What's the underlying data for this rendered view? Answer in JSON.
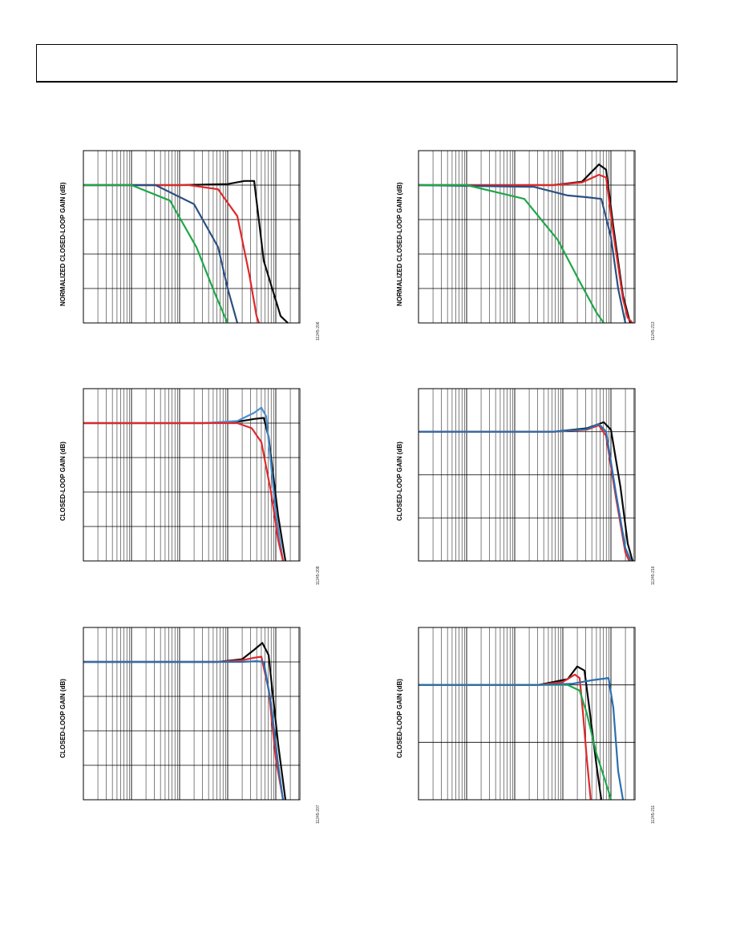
{
  "page": {
    "header": ""
  },
  "chart_data": [
    {
      "id": "c1",
      "type": "line",
      "figure_id": "11245-206",
      "ylabel": "NORMALIZED CLOSED-LOOP GAIN (dB)",
      "xscale": "log",
      "xdecades": 4.5,
      "ylim": [
        -4,
        1
      ],
      "grid": true,
      "series": [
        {
          "color": "#0a0a0a",
          "points": [
            [
              0,
              0
            ],
            [
              2.0,
              0
            ],
            [
              3.0,
              0.03
            ],
            [
              3.35,
              0.12
            ],
            [
              3.55,
              0.12
            ],
            [
              3.75,
              -2.2
            ],
            [
              4.1,
              -3.8
            ],
            [
              4.25,
              -4
            ]
          ]
        },
        {
          "color": "#e0282a",
          "points": [
            [
              0,
              0
            ],
            [
              2.2,
              0
            ],
            [
              2.8,
              -0.12
            ],
            [
              3.2,
              -0.9
            ],
            [
              3.45,
              -2.6
            ],
            [
              3.6,
              -3.8
            ],
            [
              3.65,
              -4
            ]
          ]
        },
        {
          "color": "#2b4f82",
          "points": [
            [
              0,
              0
            ],
            [
              1.5,
              0
            ],
            [
              2.3,
              -0.55
            ],
            [
              2.8,
              -1.8
            ],
            [
              3.0,
              -3.0
            ],
            [
              3.15,
              -3.75
            ],
            [
              3.2,
              -4
            ]
          ]
        },
        {
          "color": "#1fa64a",
          "points": [
            [
              0,
              0
            ],
            [
              1.0,
              0
            ],
            [
              1.8,
              -0.45
            ],
            [
              2.35,
              -1.8
            ],
            [
              2.75,
              -3.2
            ],
            [
              2.95,
              -3.85
            ],
            [
              3.0,
              -4
            ]
          ]
        }
      ]
    },
    {
      "id": "c2",
      "type": "line",
      "figure_id": "11245-213",
      "ylabel": "NORMALIZED CLOSED-LOOP GAIN (dB)",
      "xscale": "log",
      "xdecades": 4.5,
      "ylim": [
        -4,
        1
      ],
      "grid": true,
      "series": [
        {
          "color": "#0a0a0a",
          "points": [
            [
              0,
              0
            ],
            [
              2.8,
              0
            ],
            [
              3.4,
              0.1
            ],
            [
              3.75,
              0.6
            ],
            [
              3.9,
              0.45
            ],
            [
              4.05,
              -1.2
            ],
            [
              4.25,
              -3.2
            ],
            [
              4.4,
              -4
            ]
          ]
        },
        {
          "color": "#e0282a",
          "points": [
            [
              0,
              0
            ],
            [
              2.8,
              0
            ],
            [
              3.4,
              0.08
            ],
            [
              3.75,
              0.3
            ],
            [
              3.9,
              0.22
            ],
            [
              4.05,
              -1.4
            ],
            [
              4.25,
              -3.3
            ],
            [
              4.35,
              -3.85
            ],
            [
              4.45,
              -4
            ]
          ]
        },
        {
          "color": "#2b4f82",
          "points": [
            [
              0,
              0
            ],
            [
              2.4,
              -0.05
            ],
            [
              3.1,
              -0.3
            ],
            [
              3.5,
              -0.35
            ],
            [
              3.8,
              -0.4
            ],
            [
              4.0,
              -1.5
            ],
            [
              4.15,
              -3.0
            ],
            [
              4.3,
              -4
            ]
          ]
        },
        {
          "color": "#1fa64a",
          "points": [
            [
              0,
              0
            ],
            [
              1.0,
              0
            ],
            [
              2.2,
              -0.4
            ],
            [
              2.9,
              -1.6
            ],
            [
              3.35,
              -2.8
            ],
            [
              3.7,
              -3.7
            ],
            [
              3.85,
              -4
            ]
          ]
        }
      ]
    },
    {
      "id": "c3",
      "type": "line",
      "figure_id": "11245-208",
      "ylabel": "CLOSED-LOOP GAIN (dB)",
      "xscale": "log",
      "xdecades": 4.5,
      "ylim": [
        -4,
        1
      ],
      "grid": true,
      "series": [
        {
          "color": "#0a0a0a",
          "points": [
            [
              0,
              0
            ],
            [
              2.5,
              0
            ],
            [
              3.2,
              0.04
            ],
            [
              3.55,
              0.12
            ],
            [
              3.75,
              0.15
            ],
            [
              3.85,
              -0.4
            ],
            [
              4.05,
              -2.7
            ],
            [
              4.2,
              -4
            ]
          ]
        },
        {
          "color": "#4a8fcf",
          "points": [
            [
              0,
              0
            ],
            [
              2.5,
              0
            ],
            [
              3.2,
              0.06
            ],
            [
              3.55,
              0.3
            ],
            [
              3.7,
              0.45
            ],
            [
              3.8,
              0.2
            ],
            [
              4.0,
              -2.6
            ],
            [
              4.15,
              -4
            ]
          ]
        },
        {
          "color": "#e0282a",
          "points": [
            [
              0,
              0
            ],
            [
              2.5,
              0
            ],
            [
              3.2,
              0
            ],
            [
              3.5,
              -0.15
            ],
            [
              3.7,
              -0.55
            ],
            [
              3.9,
              -2.0
            ],
            [
              4.05,
              -3.4
            ],
            [
              4.15,
              -4
            ]
          ]
        }
      ]
    },
    {
      "id": "c4",
      "type": "line",
      "figure_id": "11245-216",
      "ylabel": "CLOSED-LOOP GAIN (dB)",
      "xscale": "log",
      "xdecades": 4.5,
      "ylim": [
        -3,
        1
      ],
      "grid": true,
      "series": [
        {
          "color": "#0a0a0a",
          "points": [
            [
              0,
              0
            ],
            [
              2.8,
              0
            ],
            [
              3.5,
              0.08
            ],
            [
              3.85,
              0.22
            ],
            [
              4.0,
              0.05
            ],
            [
              4.2,
              -1.3
            ],
            [
              4.35,
              -2.6
            ],
            [
              4.45,
              -3
            ]
          ]
        },
        {
          "color": "#e0282a",
          "points": [
            [
              0,
              0
            ],
            [
              2.8,
              0
            ],
            [
              3.5,
              0.05
            ],
            [
              3.75,
              0.15
            ],
            [
              3.9,
              -0.1
            ],
            [
              4.1,
              -1.5
            ],
            [
              4.3,
              -2.8
            ],
            [
              4.38,
              -3
            ]
          ]
        },
        {
          "color": "#2b6fb0",
          "points": [
            [
              0,
              0
            ],
            [
              2.8,
              0
            ],
            [
              3.5,
              0.06
            ],
            [
              3.75,
              0.18
            ],
            [
              3.9,
              0.0
            ],
            [
              4.1,
              -1.4
            ],
            [
              4.3,
              -2.7
            ],
            [
              4.42,
              -3
            ]
          ]
        }
      ]
    },
    {
      "id": "c5",
      "type": "line",
      "figure_id": "11245-207",
      "ylabel": "CLOSED-LOOP GAIN (dB)",
      "xscale": "log",
      "xdecades": 4.5,
      "ylim": [
        -4,
        1
      ],
      "grid": true,
      "series": [
        {
          "color": "#0a0a0a",
          "points": [
            [
              0,
              0
            ],
            [
              2.8,
              0
            ],
            [
              3.3,
              0.08
            ],
            [
              3.55,
              0.35
            ],
            [
              3.72,
              0.55
            ],
            [
              3.85,
              0.2
            ],
            [
              4.05,
              -2.4
            ],
            [
              4.2,
              -4
            ]
          ]
        },
        {
          "color": "#e0282a",
          "points": [
            [
              0,
              0
            ],
            [
              2.8,
              0
            ],
            [
              3.3,
              0.05
            ],
            [
              3.55,
              0.12
            ],
            [
              3.7,
              0.15
            ],
            [
              3.85,
              -0.8
            ],
            [
              4.0,
              -2.8
            ],
            [
              4.15,
              -4
            ]
          ]
        },
        {
          "color": "#2b6fb0",
          "points": [
            [
              0,
              0
            ],
            [
              2.8,
              0
            ],
            [
              3.3,
              0
            ],
            [
              3.6,
              0.02
            ],
            [
              3.75,
              0
            ],
            [
              3.9,
              -1.2
            ],
            [
              4.05,
              -3.0
            ],
            [
              4.15,
              -4
            ]
          ]
        }
      ]
    },
    {
      "id": "c6",
      "type": "line",
      "figure_id": "11245-211",
      "ylabel": "CLOSED-LOOP GAIN (dB)",
      "xscale": "log",
      "xdecades": 4.5,
      "ylim": [
        -2,
        1
      ],
      "grid": true,
      "series": [
        {
          "color": "#0a0a0a",
          "points": [
            [
              0,
              0
            ],
            [
              2.5,
              0
            ],
            [
              3.1,
              0.1
            ],
            [
              3.3,
              0.32
            ],
            [
              3.45,
              0.25
            ],
            [
              3.55,
              -0.4
            ],
            [
              3.7,
              -1.4
            ],
            [
              3.8,
              -2
            ]
          ]
        },
        {
          "color": "#e0282a",
          "points": [
            [
              0,
              0
            ],
            [
              2.5,
              0
            ],
            [
              3.0,
              0.05
            ],
            [
              3.25,
              0.18
            ],
            [
              3.35,
              0.12
            ],
            [
              3.42,
              -0.5
            ],
            [
              3.5,
              -1.3
            ],
            [
              3.58,
              -2
            ]
          ]
        },
        {
          "color": "#1fa64a",
          "points": [
            [
              0,
              0
            ],
            [
              2.5,
              0
            ],
            [
              3.1,
              0
            ],
            [
              3.35,
              -0.1
            ],
            [
              3.5,
              -0.5
            ],
            [
              3.7,
              -1.2
            ],
            [
              3.95,
              -1.85
            ],
            [
              4.0,
              -2
            ]
          ]
        },
        {
          "color": "#2b6fb0",
          "points": [
            [
              0,
              0
            ],
            [
              2.5,
              0
            ],
            [
              3.2,
              0.02
            ],
            [
              3.6,
              0.08
            ],
            [
              3.95,
              0.12
            ],
            [
              4.05,
              -0.4
            ],
            [
              4.15,
              -1.5
            ],
            [
              4.25,
              -2
            ]
          ]
        }
      ]
    }
  ]
}
